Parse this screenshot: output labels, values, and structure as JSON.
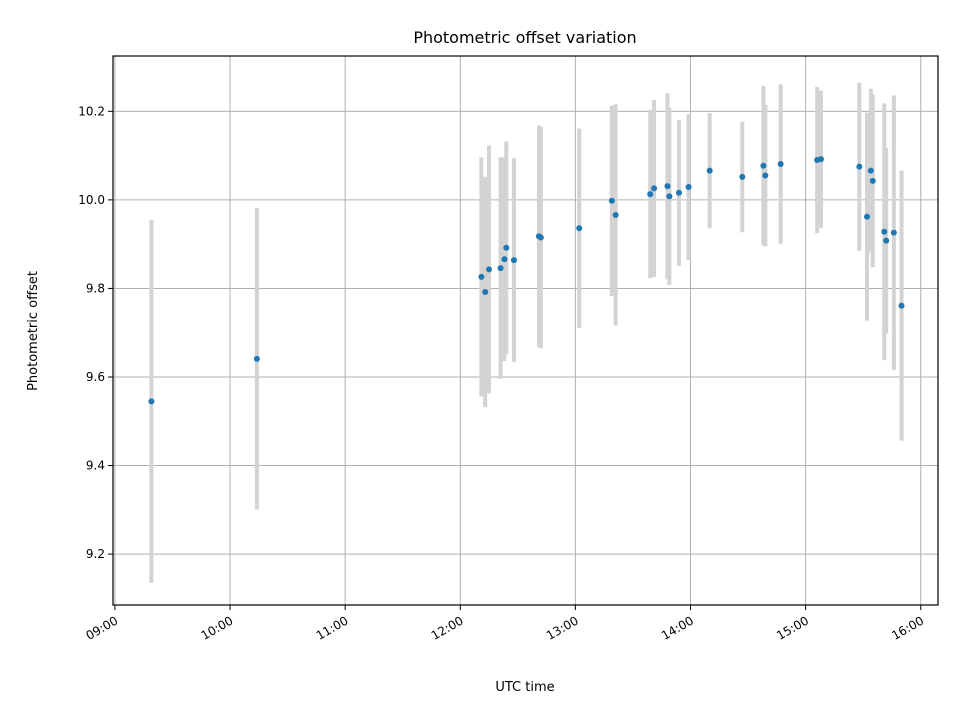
{
  "chart_data": {
    "type": "scatter",
    "title": "Photometric offset variation",
    "xlabel": "UTC time",
    "ylabel": "Photometric offset",
    "x_ticks": [
      "09:00",
      "10:00",
      "11:00",
      "12:00",
      "13:00",
      "14:00",
      "15:00",
      "16:00"
    ],
    "y_ticks": [
      "9.2",
      "9.4",
      "9.6",
      "9.8",
      "10.0",
      "10.2"
    ],
    "xlim": [
      "08:59",
      "16:09"
    ],
    "ylim": [
      9.085,
      10.325
    ],
    "grid": true,
    "legend": "none",
    "colors": {
      "point": "#1f77b4",
      "errorbar": "#d3d3d3",
      "grid": "#b0b0b0"
    },
    "points": [
      {
        "x": "09:19",
        "y": 9.545,
        "err": 0.41
      },
      {
        "x": "10:14",
        "y": 9.641,
        "err": 0.34
      },
      {
        "x": "12:11",
        "y": 9.826,
        "err": 0.27
      },
      {
        "x": "12:13",
        "y": 9.792,
        "err": 0.26
      },
      {
        "x": "12:15",
        "y": 9.843,
        "err": 0.28
      },
      {
        "x": "12:21",
        "y": 9.846,
        "err": 0.25
      },
      {
        "x": "12:23",
        "y": 9.866,
        "err": 0.23
      },
      {
        "x": "12:24",
        "y": 9.892,
        "err": 0.24
      },
      {
        "x": "12:28",
        "y": 9.864,
        "err": 0.23
      },
      {
        "x": "12:41",
        "y": 9.918,
        "err": 0.25
      },
      {
        "x": "12:42",
        "y": 9.915,
        "err": 0.25
      },
      {
        "x": "13:02",
        "y": 9.936,
        "err": 0.225
      },
      {
        "x": "13:19",
        "y": 9.998,
        "err": 0.215
      },
      {
        "x": "13:21",
        "y": 9.966,
        "err": 0.25
      },
      {
        "x": "13:39",
        "y": 10.013,
        "err": 0.19
      },
      {
        "x": "13:41",
        "y": 10.026,
        "err": 0.2
      },
      {
        "x": "13:48",
        "y": 10.031,
        "err": 0.21
      },
      {
        "x": "13:49",
        "y": 10.008,
        "err": 0.2
      },
      {
        "x": "13:54",
        "y": 10.016,
        "err": 0.165
      },
      {
        "x": "13:59",
        "y": 10.029,
        "err": 0.165
      },
      {
        "x": "14:10",
        "y": 10.066,
        "err": 0.13
      },
      {
        "x": "14:27",
        "y": 10.052,
        "err": 0.125
      },
      {
        "x": "14:38",
        "y": 10.077,
        "err": 0.18
      },
      {
        "x": "14:39",
        "y": 10.055,
        "err": 0.16
      },
      {
        "x": "14:47",
        "y": 10.081,
        "err": 0.18
      },
      {
        "x": "15:06",
        "y": 10.09,
        "err": 0.165
      },
      {
        "x": "15:08",
        "y": 10.092,
        "err": 0.155
      },
      {
        "x": "15:28",
        "y": 10.075,
        "err": 0.19
      },
      {
        "x": "15:32",
        "y": 9.962,
        "err": 0.235
      },
      {
        "x": "15:34",
        "y": 10.066,
        "err": 0.185
      },
      {
        "x": "15:35",
        "y": 10.043,
        "err": 0.195
      },
      {
        "x": "15:41",
        "y": 9.928,
        "err": 0.29
      },
      {
        "x": "15:42",
        "y": 9.908,
        "err": 0.21
      },
      {
        "x": "15:46",
        "y": 9.926,
        "err": 0.31
      },
      {
        "x": "15:50",
        "y": 9.761,
        "err": 0.305
      }
    ]
  }
}
